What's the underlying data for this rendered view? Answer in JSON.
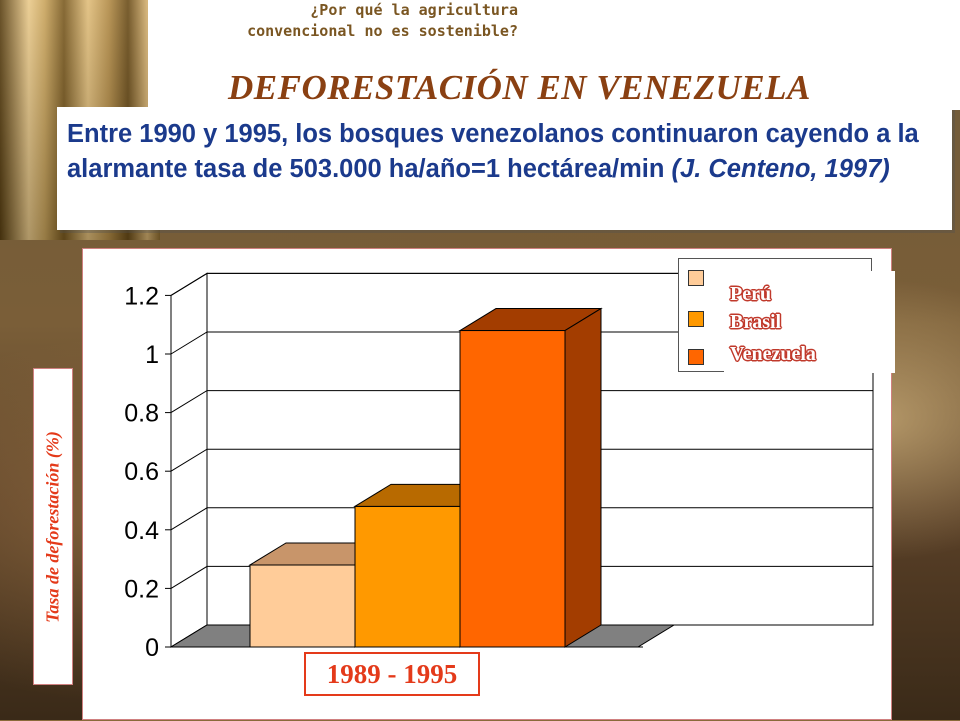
{
  "header": {
    "subtitle_line1": "¿Por qué la agricultura",
    "subtitle_line2": "convencional no es sostenible?",
    "title": "DEFORESTACIÓN EN VENEZUELA"
  },
  "quote": {
    "text": "Entre 1990 y 1995, los bosques venezolanos continuaron cayendo a la alarmante tasa de 503.000 ha/año=1 hectárea/min",
    "citation": "(J. Centeno, 1997)"
  },
  "chart_data": {
    "type": "bar",
    "style": "3d-column",
    "categories": [
      "1989 - 1995"
    ],
    "series": [
      {
        "name": "Perú",
        "values": [
          0.28
        ],
        "color": "#ffcc99",
        "side_color": "#c8956a"
      },
      {
        "name": "Brasil",
        "values": [
          0.48
        ],
        "color": "#ff9900",
        "side_color": "#b86a00"
      },
      {
        "name": "Venezuela",
        "values": [
          1.08
        ],
        "color": "#ff6600",
        "side_color": "#a33d00"
      }
    ],
    "ylabel": "Tasa de deforestación (%)",
    "ylim": [
      0,
      1.2
    ],
    "yticks": [
      "0",
      "0.2",
      "0.4",
      "0.6",
      "0.8",
      "1",
      "1.2"
    ],
    "grid": true,
    "legend": "top-right",
    "floor_color": "#808080"
  }
}
